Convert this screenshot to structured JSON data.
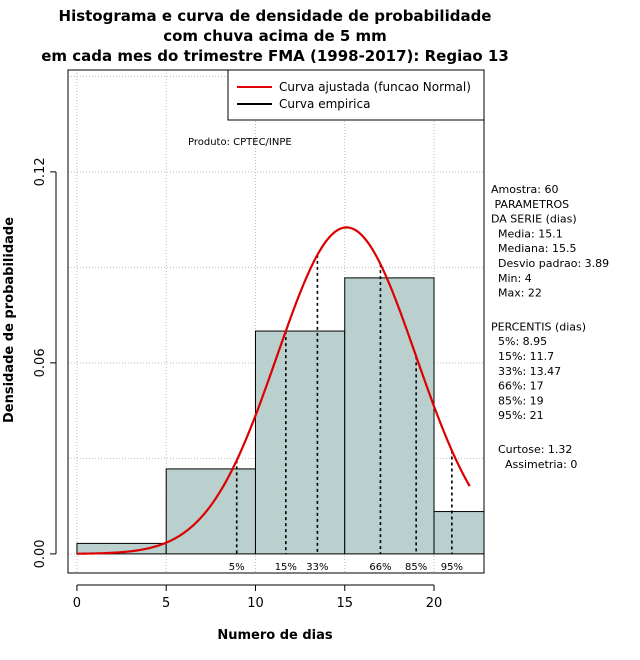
{
  "chart_data": {
    "type": "bar",
    "title_lines": [
      "Histograma e curva de densidade de probabilidade",
      "com chuva acima de 5 mm",
      "em cada mes do trimestre FMA (1998-2017): Regiao 13"
    ],
    "xlabel": "Numero de dias",
    "ylabel": "Densidade de probabilidade",
    "xlim": [
      -0.5,
      22.8
    ],
    "ylim": [
      -0.006,
      0.152
    ],
    "x_ticks": [
      0,
      5,
      10,
      15,
      20
    ],
    "x_tick_labels": [
      "0",
      "5",
      "10",
      "15",
      "20"
    ],
    "y_ticks": [
      0.0,
      0.06,
      0.12
    ],
    "y_tick_labels": [
      "0.00",
      "0.06",
      "0.12"
    ],
    "grid": true,
    "bins": [
      {
        "start": 0,
        "end": 5,
        "density": 0.0033
      },
      {
        "start": 5,
        "end": 10,
        "density": 0.0267
      },
      {
        "start": 10,
        "end": 15,
        "density": 0.07
      },
      {
        "start": 15,
        "end": 20,
        "density": 0.0867
      },
      {
        "start": 20,
        "end": 22.8,
        "density": 0.0133
      }
    ],
    "normal_curve": {
      "mean": 15.1,
      "sd": 3.89,
      "x_from": 0,
      "x_to": 22,
      "color": "#dd0000"
    },
    "bar_color": "#b9d0cf",
    "percentile_lines": [
      {
        "label": "5%",
        "x": 8.95
      },
      {
        "label": "15%",
        "x": 11.7
      },
      {
        "label": "33%",
        "x": 13.47
      },
      {
        "label": "66%",
        "x": 17
      },
      {
        "label": "85%",
        "x": 19
      },
      {
        "label": "95%",
        "x": 21
      }
    ],
    "legend": {
      "placement": "top-right",
      "entries": [
        {
          "label": "Curva ajustada (funcao Normal)",
          "color": "#dd0000"
        },
        {
          "label": "Curva empirica",
          "color": "#000000"
        }
      ]
    },
    "product_note": "Produto: CPTEC/INPE",
    "side_panel": [
      "Amostra: 60",
      " PARAMETROS",
      "DA SERIE (dias)",
      "  Media: 15.1",
      "  Mediana: 15.5",
      "  Desvio padrao: 3.89",
      "  Min: 4",
      "  Max: 22",
      "",
      "PERCENTIS (dias)",
      "  5%: 8.95",
      "  15%: 11.7",
      "  33%: 13.47",
      "  66%: 17",
      "  85%: 19",
      "  95%: 21",
      "",
      "  Curtose: 1.32",
      "    Assimetria: 0"
    ]
  }
}
